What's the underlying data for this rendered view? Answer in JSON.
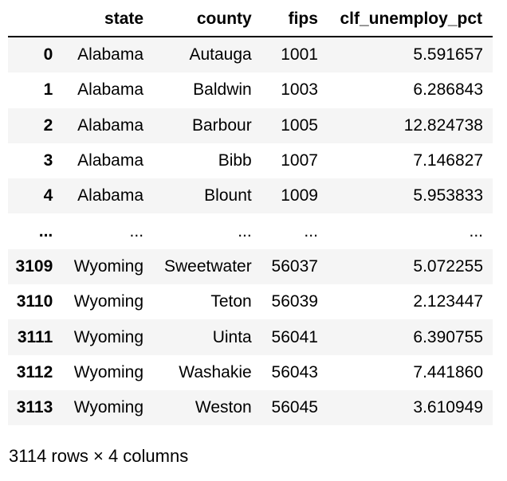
{
  "table": {
    "columns": [
      "",
      "state",
      "county",
      "fips",
      "clf_unemploy_pct"
    ],
    "rows": [
      {
        "index": "0",
        "cells": [
          "Alabama",
          "Autauga",
          "1001",
          "5.591657"
        ]
      },
      {
        "index": "1",
        "cells": [
          "Alabama",
          "Baldwin",
          "1003",
          "6.286843"
        ]
      },
      {
        "index": "2",
        "cells": [
          "Alabama",
          "Barbour",
          "1005",
          "12.824738"
        ]
      },
      {
        "index": "3",
        "cells": [
          "Alabama",
          "Bibb",
          "1007",
          "7.146827"
        ]
      },
      {
        "index": "4",
        "cells": [
          "Alabama",
          "Blount",
          "1009",
          "5.953833"
        ]
      },
      {
        "index": "...",
        "cells": [
          "...",
          "...",
          "...",
          "..."
        ]
      },
      {
        "index": "3109",
        "cells": [
          "Wyoming",
          "Sweetwater",
          "56037",
          "5.072255"
        ]
      },
      {
        "index": "3110",
        "cells": [
          "Wyoming",
          "Teton",
          "56039",
          "2.123447"
        ]
      },
      {
        "index": "3111",
        "cells": [
          "Wyoming",
          "Uinta",
          "56041",
          "6.390755"
        ]
      },
      {
        "index": "3112",
        "cells": [
          "Wyoming",
          "Washakie",
          "56043",
          "7.441860"
        ]
      },
      {
        "index": "3113",
        "cells": [
          "Wyoming",
          "Weston",
          "56045",
          "3.610949"
        ]
      }
    ]
  },
  "footer": {
    "shape_text": "3114 rows × 4 columns"
  }
}
